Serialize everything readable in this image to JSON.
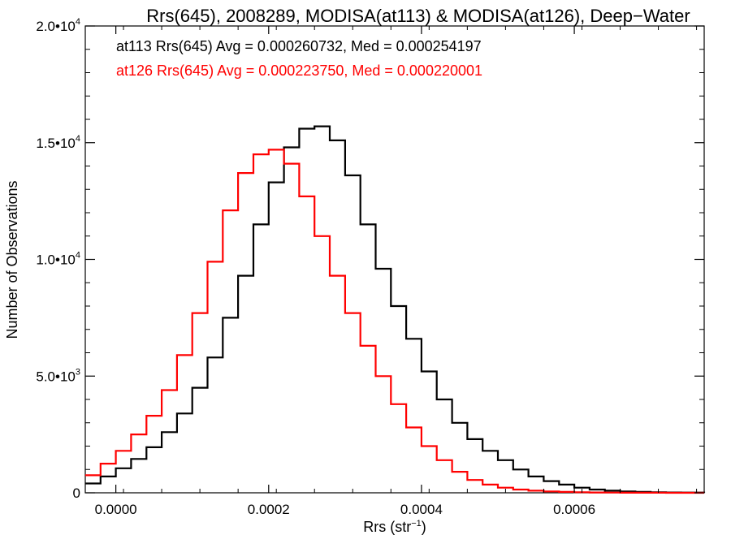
{
  "chart_data": {
    "type": "line",
    "title": "Rrs(645), 2008289, MODISA(at113) & MODISA(at126), Deep−Water",
    "xlabel": "Rrs (str",
    "xlabel_sup": "−1",
    "xlabel_close": ")",
    "ylabel": "Number of Observations",
    "xlim": [
      -4e-05,
      0.00077
    ],
    "ylim": [
      0,
      20000
    ],
    "xticks": [
      {
        "value": 0.0,
        "label": "0.0000"
      },
      {
        "value": 0.0002,
        "label": "0.0002"
      },
      {
        "value": 0.0004,
        "label": "0.0004"
      },
      {
        "value": 0.0006,
        "label": "0.0006"
      }
    ],
    "yticks": [
      {
        "value": 0,
        "mant": "0",
        "exp": ""
      },
      {
        "value": 5000,
        "mant": "5.0•10",
        "exp": "3"
      },
      {
        "value": 10000,
        "mant": "1.0•10",
        "exp": "4"
      },
      {
        "value": 15000,
        "mant": "1.5•10",
        "exp": "4"
      },
      {
        "value": 20000,
        "mant": "2.0•10",
        "exp": "4"
      }
    ],
    "grid": false,
    "annotations": [
      {
        "text": "at113 Rrs(645) Avg = 0.000260732, Med = 0.000254197",
        "color": "#000000"
      },
      {
        "text": "at126 Rrs(645) Avg = 0.000223750, Med = 0.000220001",
        "color": "#ff0000"
      }
    ],
    "series": [
      {
        "color": "#000000",
        "x": [
          -4e-05,
          -2e-05,
          0.0,
          2e-05,
          4e-05,
          6e-05,
          8e-05,
          0.0001,
          0.00012,
          0.00014,
          0.00016,
          0.00018,
          0.0002,
          0.00022,
          0.00024,
          0.00026,
          0.00028,
          0.0003,
          0.00032,
          0.00034,
          0.00036,
          0.00038,
          0.0004,
          0.00042,
          0.00044,
          0.00046,
          0.00048,
          0.0005,
          0.00052,
          0.00054,
          0.00056,
          0.00058,
          0.0006,
          0.00062,
          0.00064,
          0.00066,
          0.00068,
          0.0007,
          0.00072,
          0.00074,
          0.00077
        ],
        "y": [
          400,
          700,
          1050,
          1450,
          1950,
          2600,
          3400,
          4500,
          5800,
          7500,
          9300,
          11500,
          13300,
          14800,
          15600,
          15700,
          15100,
          13600,
          11500,
          9600,
          8000,
          6600,
          5200,
          4000,
          3000,
          2300,
          1800,
          1400,
          1000,
          700,
          500,
          350,
          220,
          140,
          90,
          60,
          40,
          25,
          15,
          10,
          5
        ]
      },
      {
        "color": "#ff0000",
        "x": [
          -4e-05,
          -2e-05,
          0.0,
          2e-05,
          4e-05,
          6e-05,
          8e-05,
          0.0001,
          0.00012,
          0.00014,
          0.00016,
          0.00018,
          0.0002,
          0.00022,
          0.00024,
          0.00026,
          0.00028,
          0.0003,
          0.00032,
          0.00034,
          0.00036,
          0.00038,
          0.0004,
          0.00042,
          0.00044,
          0.00046,
          0.00048,
          0.0005,
          0.00052,
          0.00054,
          0.00056,
          0.00058,
          0.0006,
          0.00062,
          0.00064,
          0.00066,
          0.00068,
          0.0007,
          0.00072,
          0.00074,
          0.00077
        ],
        "y": [
          750,
          1250,
          1800,
          2500,
          3300,
          4400,
          5900,
          7700,
          9900,
          12100,
          13700,
          14500,
          14700,
          14100,
          12700,
          11000,
          9300,
          7700,
          6300,
          5000,
          3800,
          2800,
          2000,
          1400,
          900,
          550,
          350,
          220,
          140,
          90,
          60,
          40,
          25,
          15,
          10,
          5,
          3,
          2,
          1,
          1,
          0
        ]
      }
    ]
  }
}
